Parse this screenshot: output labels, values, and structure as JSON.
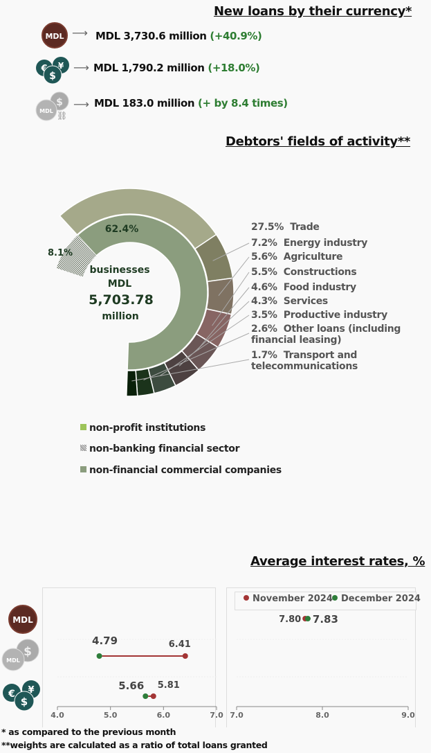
{
  "section1": {
    "title": "New loans by their currency*",
    "rows": [
      {
        "icon": "mdl-coin-icon",
        "value": "MDL 3,730.6 million",
        "change": "(+40.9%)"
      },
      {
        "icon": "foreign-currency-coins-icon",
        "value": "MDL 1,790.2 million",
        "change": "(+18.0%)"
      },
      {
        "icon": "linked-currency-coins-icon",
        "value": "MDL 183.0 million",
        "change": "(+ by 8.4 times)"
      }
    ]
  },
  "section2": {
    "title": "Debtors' fields of activity**",
    "center": {
      "line1": "businesses",
      "line2": "MDL",
      "value": "5,703.78",
      "line4": "million"
    },
    "legend": [
      "non-profit institutions",
      "non-banking financial sector",
      "non-financial commercial companies"
    ],
    "labels": [
      {
        "pct": "27.5%",
        "name": "Trade"
      },
      {
        "pct": "7.2%",
        "name": "Energy industry"
      },
      {
        "pct": "5.6%",
        "name": "Agriculture"
      },
      {
        "pct": "5.5%",
        "name": "Constructions"
      },
      {
        "pct": "4.6%",
        "name": "Food industry"
      },
      {
        "pct": "4.3%",
        "name": "Services"
      },
      {
        "pct": "3.5%",
        "name": "Productive industry"
      },
      {
        "pct": "2.6%",
        "name": "Other loans (including",
        "name2": "financial leasing)"
      },
      {
        "pct": "1.7%",
        "name": "Transport and",
        "name2": "telecommunications"
      }
    ]
  },
  "section3": {
    "title": "Average interest rates, %",
    "footnote1": "* as compared to the previous month",
    "footnote2": "**weights are calculated as a ratio of total loans granted"
  },
  "chart_data": [
    {
      "type": "pie",
      "title": "Debtors' fields of activity**",
      "inner_ring": [
        {
          "name": "non-financial commercial companies",
          "value": 62.4,
          "label": "62.4%",
          "color": "#8b9d7e"
        },
        {
          "name": "non-banking financial sector",
          "value": 8.1,
          "label": "8.1%",
          "color": "#9aa08f"
        },
        {
          "name": "non-profit institutions",
          "value": 0,
          "color": "#9dc45a"
        }
      ],
      "outer_ring": [
        {
          "name": "Trade",
          "value": 27.5,
          "color": "#a5a98a"
        },
        {
          "name": "Energy industry",
          "value": 7.2,
          "color": "#7f7f62"
        },
        {
          "name": "Agriculture",
          "value": 5.6,
          "color": "#7f7262"
        },
        {
          "name": "Constructions",
          "value": 5.5,
          "color": "#876563"
        },
        {
          "name": "Food industry",
          "value": 4.6,
          "color": "#6a5656"
        },
        {
          "name": "Services",
          "value": 4.3,
          "color": "#4d4141"
        },
        {
          "name": "Productive industry",
          "value": 3.5,
          "color": "#3c4b3f"
        },
        {
          "name": "Other loans (including financial leasing)",
          "value": 2.6,
          "color": "#1b331b"
        },
        {
          "name": "Transport and telecommunications",
          "value": 1.7,
          "color": "#0a200a"
        }
      ]
    },
    {
      "type": "scatter",
      "title": "Average interest rates, %",
      "legend": [
        {
          "name": "November 2024",
          "color": "#a33535"
        },
        {
          "name": "December 2024",
          "color": "#2e7d3a"
        }
      ],
      "legend_placement": "top",
      "panels": [
        {
          "xlim": [
            4.0,
            7.0
          ],
          "ticks": [
            "4.0",
            "5.0",
            "6.0",
            "7.0"
          ],
          "rows": [
            {
              "category": "MDL",
              "nov": null,
              "dec": null
            },
            {
              "category": "linked to foreign currency",
              "nov": 6.41,
              "dec": 4.79,
              "nov_label": "6.41",
              "dec_label": "4.79"
            },
            {
              "category": "foreign currency",
              "nov": 5.81,
              "dec": 5.66,
              "nov_label": "5.81",
              "dec_label": "5.66"
            }
          ]
        },
        {
          "xlim": [
            7.0,
            9.0
          ],
          "ticks": [
            "7.0",
            "8.0",
            "9.0"
          ],
          "rows": [
            {
              "category": "MDL",
              "nov": 7.8,
              "dec": 7.83,
              "nov_label": "7.80",
              "dec_label": "7.83"
            }
          ]
        }
      ]
    }
  ]
}
